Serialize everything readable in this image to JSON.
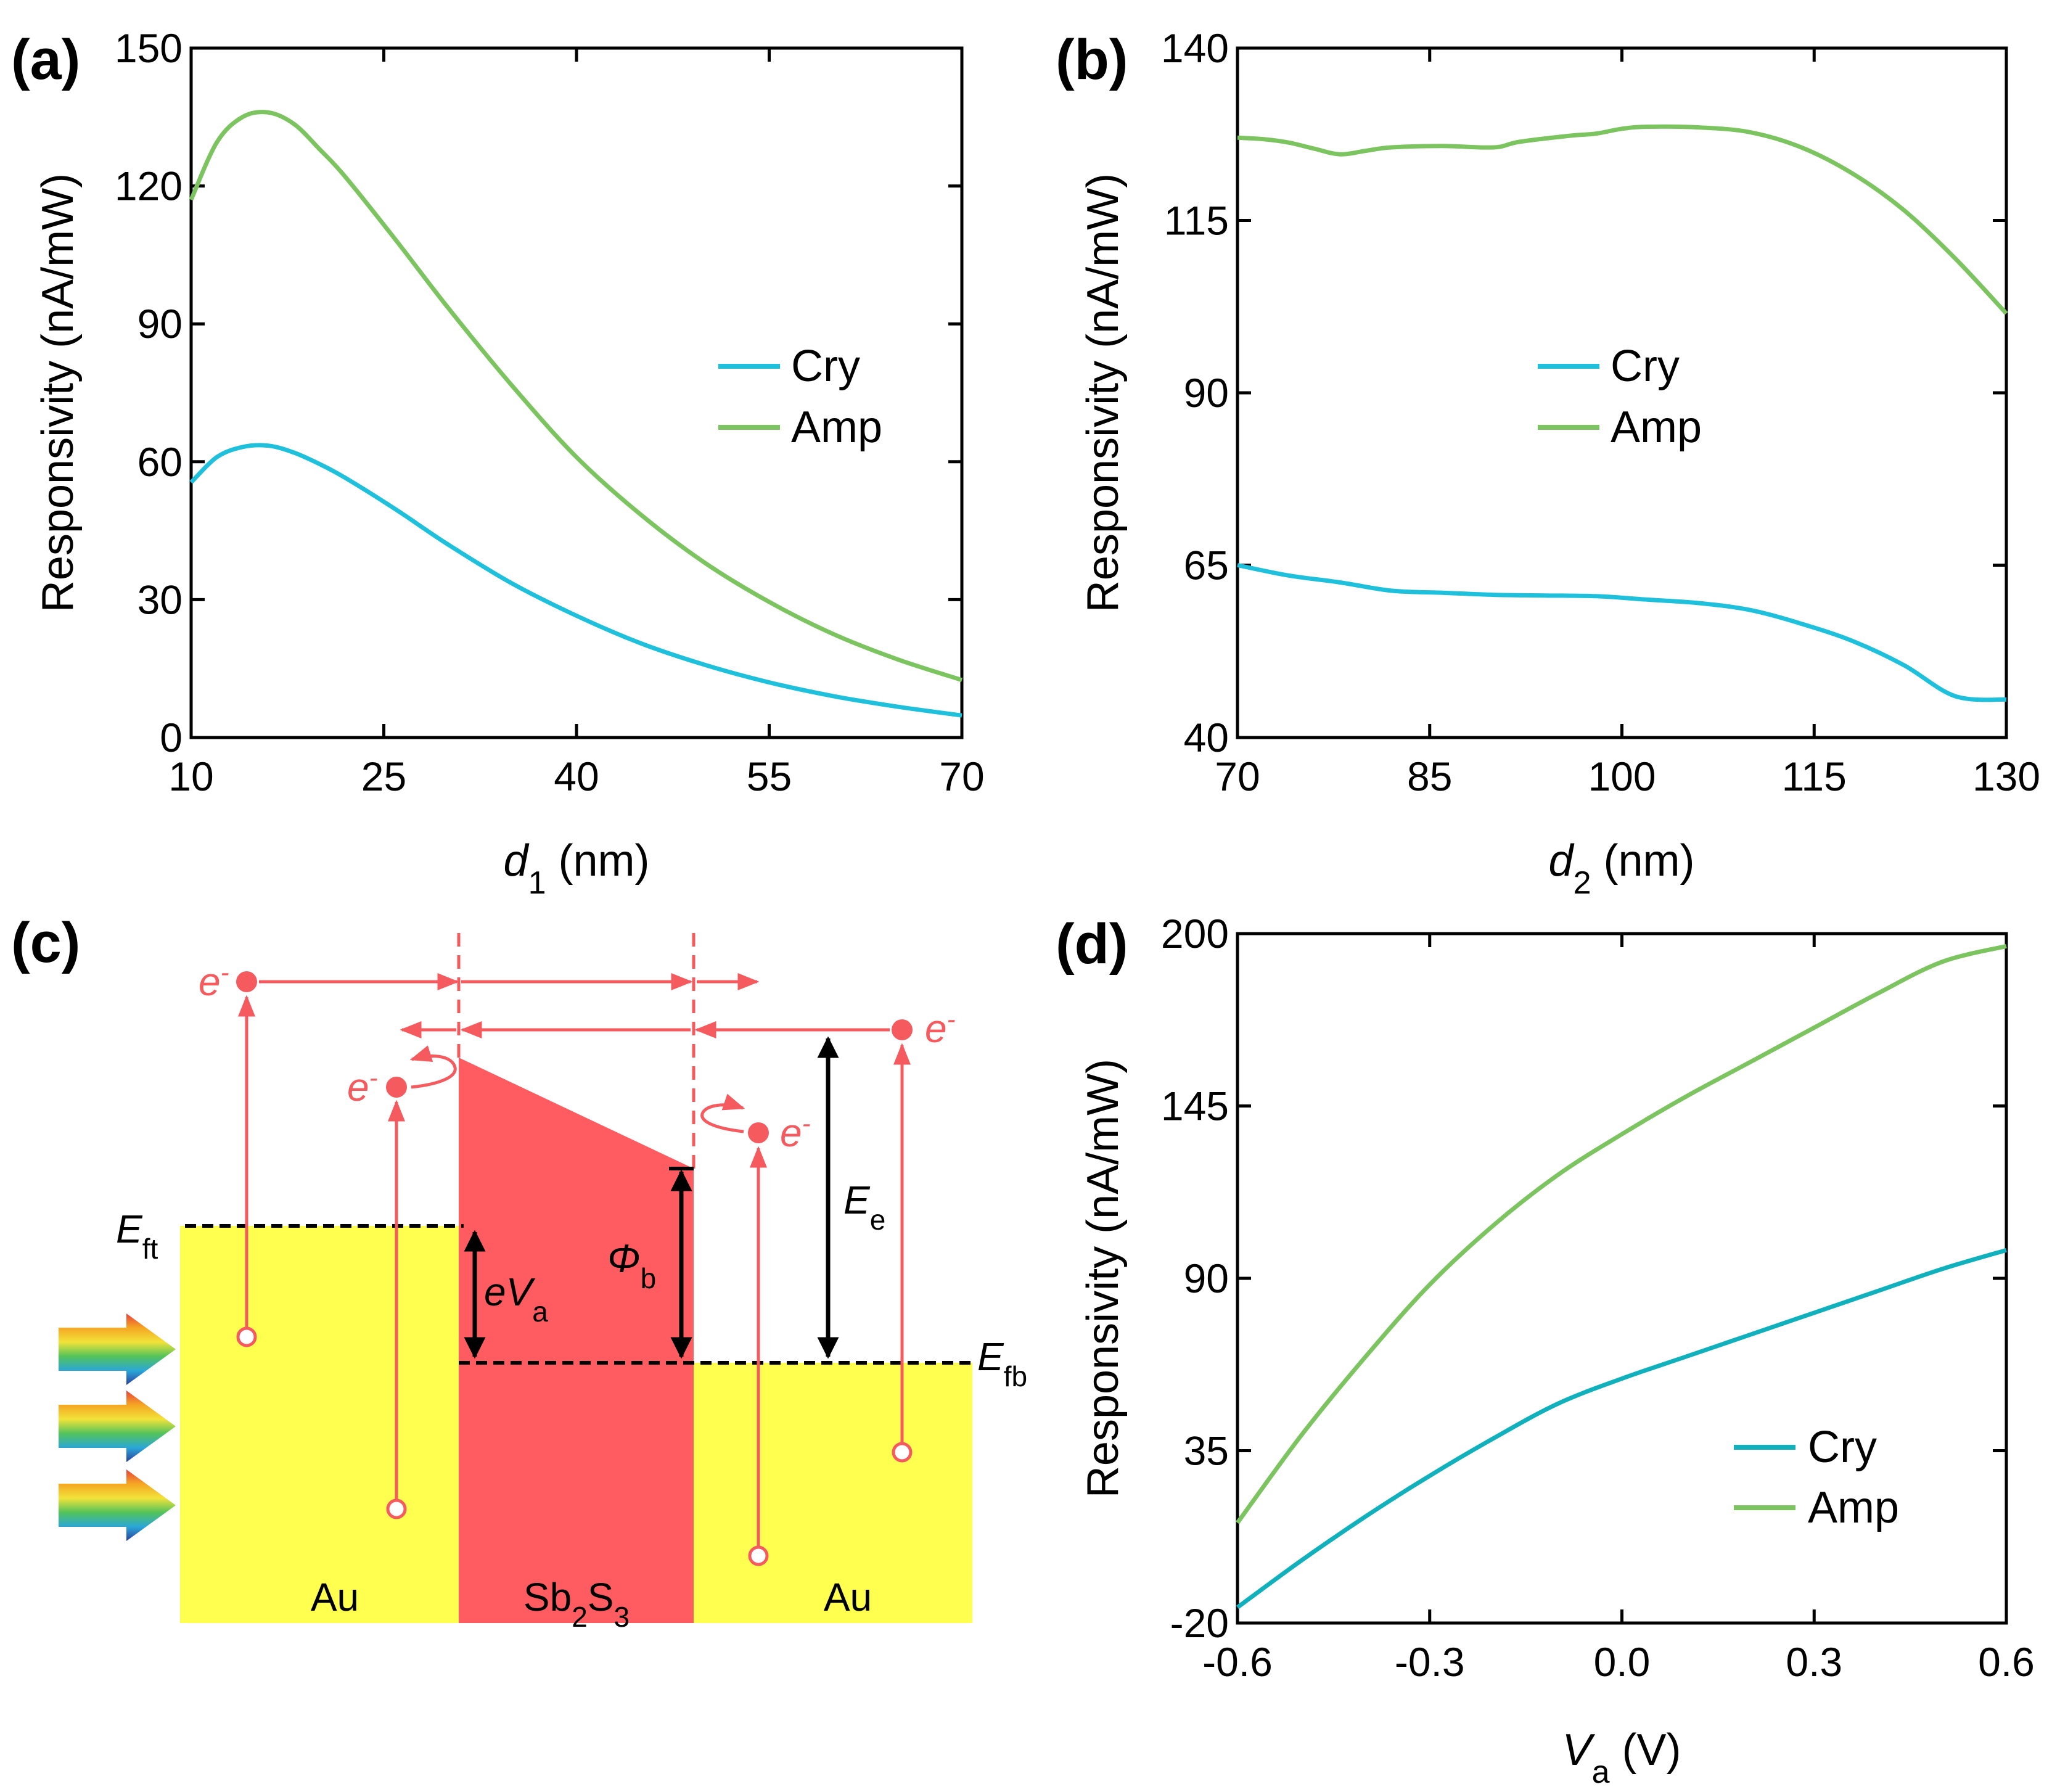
{
  "colors": {
    "cry": "#1ec0dc",
    "amp": "#7cc460",
    "cry_d": "#10b1bd",
    "red": "#f45a5e",
    "au": "#ffff4f",
    "sb": "#ff5c62"
  },
  "chart_data": [
    {
      "id": "a",
      "panel_label": "(a)",
      "type": "line",
      "xlabel": {
        "var": "d",
        "sub": "1",
        "unit": " (nm)"
      },
      "ylabel": "Responsivity (nA/mW)",
      "xlim": [
        10,
        70
      ],
      "ylim": [
        0,
        150
      ],
      "xticks": [
        10,
        25,
        40,
        55,
        70
      ],
      "yticks": [
        0,
        30,
        60,
        90,
        120,
        150
      ],
      "legend": [
        "Cry",
        "Amp"
      ],
      "legend_position": "center-right",
      "series": [
        {
          "name": "Cry",
          "color": "#1ec0dc",
          "x": [
            10,
            12,
            14,
            16,
            18,
            20,
            22,
            26,
            30,
            35,
            40,
            45,
            50,
            55,
            60,
            65,
            70
          ],
          "y": [
            55.5,
            61,
            63.2,
            63.5,
            62,
            59.5,
            56.5,
            49.5,
            42,
            33.5,
            26.5,
            20.5,
            15.8,
            12,
            9,
            6.7,
            4.8
          ]
        },
        {
          "name": "Amp",
          "color": "#7cc460",
          "x": [
            10,
            12,
            14,
            16,
            18,
            20,
            22,
            26,
            30,
            35,
            40,
            45,
            50,
            55,
            60,
            65,
            70
          ],
          "y": [
            117,
            129.5,
            135,
            136,
            133.5,
            128,
            122,
            108,
            93.5,
            76.5,
            61,
            48.5,
            38,
            29.5,
            22.5,
            17,
            12.5
          ]
        }
      ]
    },
    {
      "id": "b",
      "panel_label": "(b)",
      "type": "line",
      "xlabel": {
        "var": "d",
        "sub": "2",
        "unit": " (nm)"
      },
      "ylabel": "Responsivity (nA/mW)",
      "xlim": [
        70,
        130
      ],
      "ylim": [
        40,
        140
      ],
      "xticks": [
        70,
        85,
        100,
        115,
        130
      ],
      "yticks": [
        40,
        65,
        90,
        115,
        140
      ],
      "legend": [
        "Cry",
        "Amp"
      ],
      "legend_position": "center",
      "series": [
        {
          "name": "Cry",
          "color": "#1ec0dc",
          "x": [
            70,
            74,
            78,
            82,
            86,
            90,
            94,
            98,
            102,
            106,
            110,
            114,
            118,
            122,
            126,
            130
          ],
          "y": [
            65,
            63.5,
            62.5,
            61.3,
            61,
            60.7,
            60.6,
            60.5,
            60,
            59.5,
            58.5,
            56.5,
            54,
            50.5,
            46,
            45.5
          ]
        },
        {
          "name": "Amp",
          "color": "#7cc460",
          "x": [
            70,
            72,
            74,
            76,
            78,
            80,
            82,
            86,
            90,
            92,
            96,
            98,
            100,
            102,
            106,
            110,
            114,
            118,
            122,
            126,
            130
          ],
          "y": [
            127,
            126.8,
            126.3,
            125.4,
            124.6,
            125.1,
            125.6,
            125.8,
            125.6,
            126.4,
            127.3,
            127.6,
            128.3,
            128.6,
            128.5,
            127.8,
            125.6,
            121.8,
            116.5,
            109.5,
            101.5
          ]
        }
      ]
    },
    {
      "id": "d",
      "panel_label": "(d)",
      "type": "line",
      "xlabel": {
        "var": "V",
        "sub": "a",
        "unit": " (V)"
      },
      "ylabel": "Responsivity (nA/mW)",
      "xlim": [
        -0.6,
        0.6
      ],
      "ylim": [
        -20,
        200
      ],
      "xticks": [
        -0.6,
        -0.3,
        0.0,
        0.3,
        0.6
      ],
      "xtick_labels": [
        "-0.6",
        "-0.3",
        "0.0",
        "0.3",
        "0.6"
      ],
      "yticks": [
        -20,
        35,
        90,
        145,
        200
      ],
      "legend": [
        "Cry",
        "Amp"
      ],
      "legend_position": "bottom-right",
      "series": [
        {
          "name": "Cry",
          "color": "#10b1bd",
          "x": [
            -0.6,
            -0.5,
            -0.4,
            -0.3,
            -0.2,
            -0.1,
            0.0,
            0.1,
            0.2,
            0.3,
            0.4,
            0.5,
            0.6
          ],
          "y": [
            -15,
            0,
            14,
            27,
            39,
            50,
            58,
            65,
            72,
            79,
            86,
            93,
            99
          ]
        },
        {
          "name": "Amp",
          "color": "#7cc460",
          "x": [
            -0.6,
            -0.5,
            -0.4,
            -0.3,
            -0.2,
            -0.1,
            0.0,
            0.1,
            0.2,
            0.3,
            0.4,
            0.5,
            0.6
          ],
          "y": [
            12,
            40,
            65,
            88,
            107,
            123,
            136,
            148,
            159,
            170,
            181,
            191,
            196
          ]
        }
      ]
    }
  ],
  "diagram_c": {
    "panel_label": "(c)",
    "au_left": "Au",
    "sb": {
      "a": "Sb",
      "sub1": "2",
      "b": "S",
      "sub2": "3"
    },
    "au_right": "Au",
    "eft": {
      "main": "E",
      "sub": "ft"
    },
    "efb": {
      "main": "E",
      "sub": "fb"
    },
    "eva": {
      "pre": "e",
      "var": "V",
      "sub": "a"
    },
    "phib": {
      "main": "Φ",
      "sub": "b"
    },
    "ee": {
      "main": "E",
      "sub": "e"
    },
    "electron": {
      "main": "e",
      "sup": "-"
    }
  }
}
